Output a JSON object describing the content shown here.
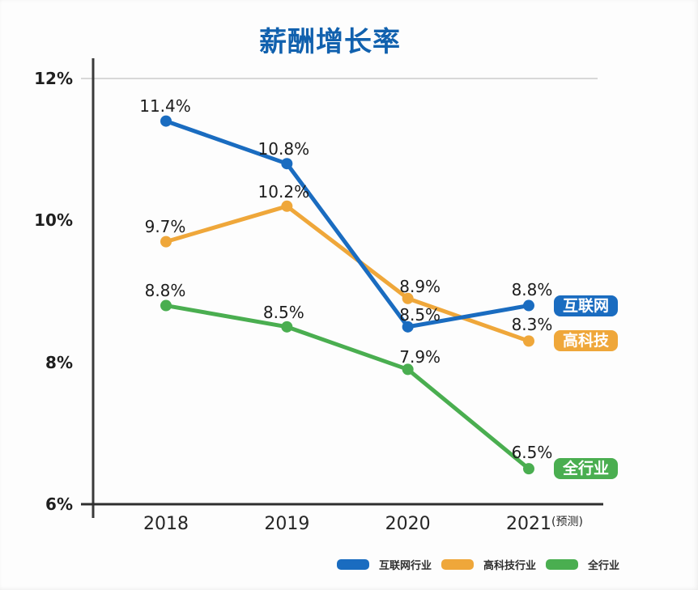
{
  "chart_data": {
    "type": "line",
    "title": "薪酬增长率",
    "title_color": "#1161ae",
    "categories": [
      "2018",
      "2019",
      "2020",
      "2021"
    ],
    "last_category_suffix": "(预测)",
    "value_suffix": "%",
    "ylim": [
      6,
      12
    ],
    "y_ticks": [
      {
        "value": 12,
        "label": "12%"
      },
      {
        "value": 10,
        "label": "10%"
      },
      {
        "value": 8,
        "label": "8%"
      },
      {
        "value": 6,
        "label": "6%"
      }
    ],
    "grid_lines_at": [
      12
    ],
    "grid_color": "#d8d8d8",
    "axis_color": "#3a3a3a",
    "legend_position": "bottom",
    "series": [
      {
        "key": "internet",
        "name": "互联网行业",
        "badge": "互联网",
        "color": "#1a6cc0",
        "values": [
          11.4,
          10.8,
          8.5,
          8.8
        ],
        "point_labels": [
          "11.4%",
          "10.8%",
          "8.5%",
          "8.8%"
        ]
      },
      {
        "key": "hightech",
        "name": "高科技行业",
        "badge": "高科技",
        "color": "#efa73a",
        "values": [
          9.7,
          10.2,
          8.9,
          8.3
        ],
        "point_labels": [
          "9.7%",
          "10.2%",
          "8.9%",
          "8.3%"
        ]
      },
      {
        "key": "all-industry",
        "name": "全行业",
        "badge": "全行业",
        "color": "#4aae50",
        "values": [
          8.8,
          8.5,
          7.9,
          6.5
        ],
        "point_labels": [
          "8.8%",
          "8.5%",
          "7.9%",
          "6.5%"
        ]
      }
    ]
  }
}
